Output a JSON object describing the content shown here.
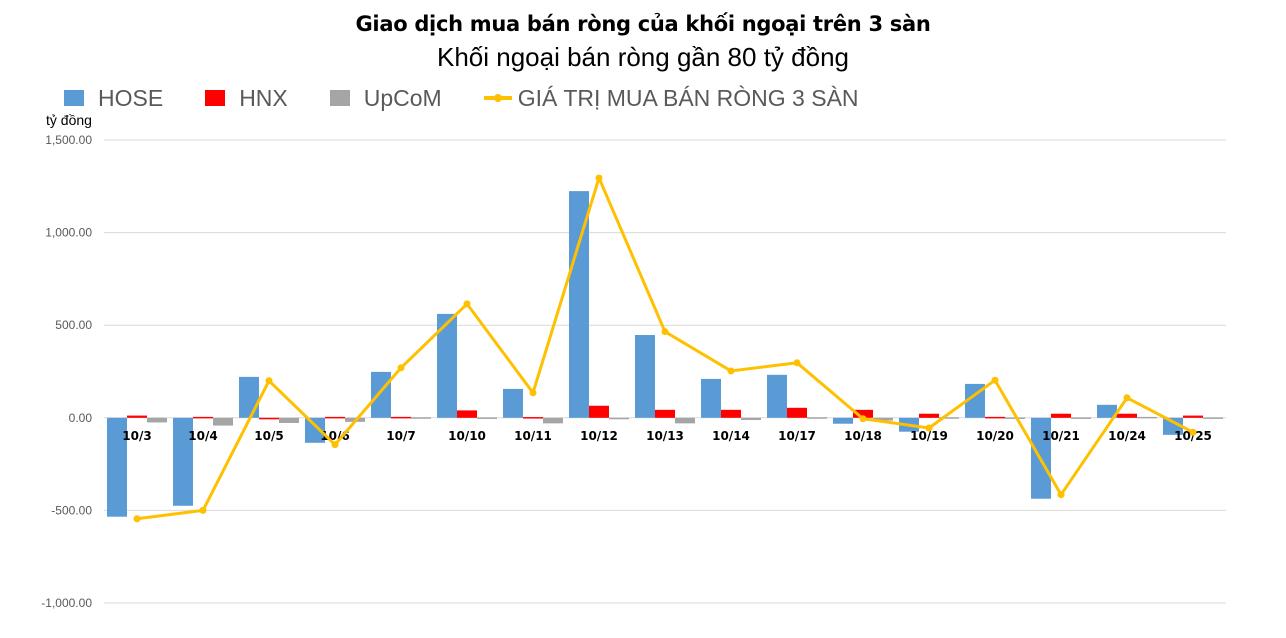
{
  "header": {
    "title": "Giao dịch mua bán ròng của khối ngoại trên 3 sàn",
    "subtitle": "Khối ngoại bán ròng gần 80 tỷ đồng"
  },
  "legend": {
    "items": [
      {
        "label": "HOSE",
        "color": "#5B9BD5",
        "kind": "bar"
      },
      {
        "label": "HNX",
        "color": "#FF0000",
        "kind": "bar"
      },
      {
        "label": "UpCoM",
        "color": "#A5A5A5",
        "kind": "bar"
      },
      {
        "label": "GIÁ TRỊ MUA BÁN RÒNG 3 SÀN",
        "color": "#FFC000",
        "kind": "line"
      }
    ]
  },
  "axis": {
    "ylabel": "tỷ đồng",
    "yticks": [
      "1,500.00",
      "1,000.00",
      "500.00",
      "0.00",
      "-500.00",
      "-1,000.00"
    ]
  },
  "chart_data": {
    "type": "bar",
    "title": "Giao dịch mua bán ròng của khối ngoại trên 3 sàn",
    "subtitle": "Khối ngoại bán ròng gần 80 tỷ đồng",
    "xlabel": "",
    "ylabel": "tỷ đồng",
    "ylim": [
      -1000,
      1500
    ],
    "yticks": [
      1500,
      1000,
      500,
      0,
      -500,
      -1000
    ],
    "grid": true,
    "legend_position": "top",
    "categories": [
      "10/3",
      "10/4",
      "10/5",
      "10/6",
      "10/7",
      "10/10",
      "10/11",
      "10/12",
      "10/13",
      "10/14",
      "10/17",
      "10/18",
      "10/19",
      "10/20",
      "10/21",
      "10/24",
      "10/25"
    ],
    "series": [
      {
        "name": "HOSE",
        "type": "bar",
        "color": "#5B9BD5",
        "values": [
          -534,
          -475,
          221,
          -135,
          248,
          561,
          156,
          1224,
          447,
          210,
          232,
          -32,
          -75,
          183,
          -437,
          70,
          -92
        ]
      },
      {
        "name": "HNX",
        "type": "bar",
        "color": "#FF0000",
        "values": [
          12,
          5,
          -4,
          5,
          5,
          40,
          4,
          65,
          43,
          43,
          54,
          43,
          22,
          5,
          22,
          22,
          12
        ]
      },
      {
        "name": "UpCoM",
        "type": "bar",
        "color": "#A5A5A5",
        "values": [
          -25,
          -42,
          -28,
          -22,
          3,
          2,
          -30,
          -2,
          -30,
          -12,
          3,
          -15,
          3,
          2,
          2,
          5,
          2
        ]
      },
      {
        "name": "GIÁ TRỊ MUA BÁN RÒNG 3 SÀN",
        "type": "line",
        "color": "#FFC000",
        "values": [
          -545,
          -500,
          200,
          -145,
          270,
          615,
          135,
          1295,
          465,
          253,
          297,
          -5,
          -55,
          203,
          -415,
          108,
          -78
        ]
      }
    ]
  }
}
